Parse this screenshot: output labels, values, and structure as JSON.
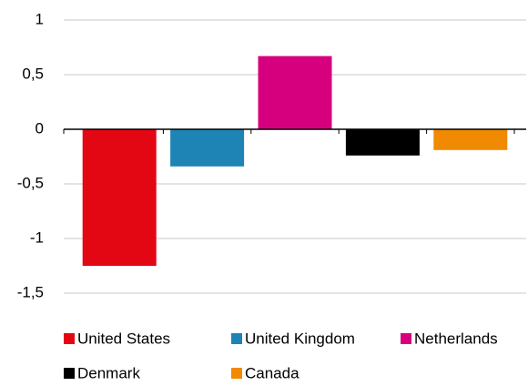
{
  "chart_data": {
    "type": "bar",
    "series": [
      {
        "name": "United States",
        "color": "#e30613",
        "values": [
          -1.25
        ]
      },
      {
        "name": "United Kingdom",
        "color": "#1d84b5",
        "values": [
          -0.34
        ]
      },
      {
        "name": "Netherlands",
        "color": "#d6007f",
        "values": [
          0.67
        ]
      },
      {
        "name": "Denmark",
        "color": "#000000",
        "values": [
          -0.24
        ]
      },
      {
        "name": "Canada",
        "color": "#f08a00",
        "values": [
          -0.19
        ]
      }
    ],
    "ylim": [
      -1.5,
      1
    ],
    "yticks": [
      {
        "value": -1.5,
        "label": "-1,5"
      },
      -1,
      {
        "value": -0.5,
        "label": "-0,5"
      },
      0,
      {
        "value": 0.5,
        "label": "0,5"
      },
      1
    ],
    "grid": true,
    "legend": "bottom"
  }
}
